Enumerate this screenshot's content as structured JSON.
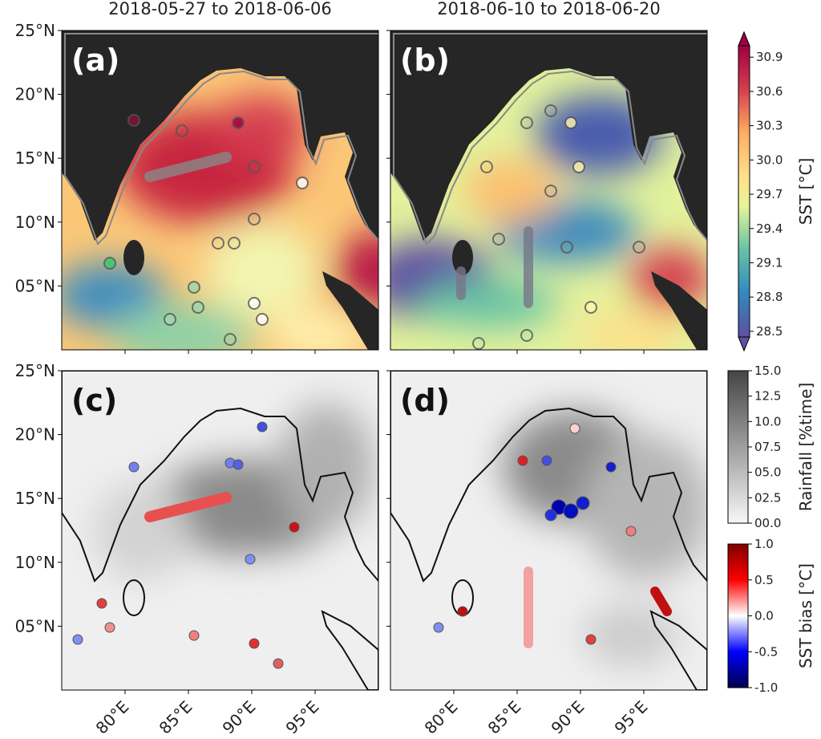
{
  "panels": [
    {
      "label": "(a)",
      "title": "2018-05-27 to 2018-06-06"
    },
    {
      "label": "(b)",
      "title": "2018-06-10 to 2018-06-20"
    },
    {
      "label": "(c)"
    },
    {
      "label": "(d)"
    }
  ],
  "map": {
    "lat_lim": [
      0,
      25
    ],
    "lon_lim": [
      75,
      100
    ],
    "lat_ticks": [
      {
        "value": 25,
        "label": "25°N"
      },
      {
        "value": 20,
        "label": "20°N"
      },
      {
        "value": 15,
        "label": "15°N"
      },
      {
        "value": 10,
        "label": "10°N"
      },
      {
        "value": 5,
        "label": "05°N"
      }
    ],
    "lon_ticks": [
      {
        "value": 80,
        "label": "80°E"
      },
      {
        "value": 85,
        "label": "85°E"
      },
      {
        "value": 90,
        "label": "90°E"
      },
      {
        "value": 95,
        "label": "95°E"
      }
    ]
  },
  "colorbars": [
    {
      "label": "SST [°C]",
      "lim": [
        28.45,
        31.0
      ],
      "ticks": [
        28.5,
        28.8,
        29.1,
        29.4,
        29.7,
        {
          "value": 30,
          "label": "30.0"
        },
        30.3,
        30.6,
        30.9
      ]
    },
    {
      "label": "Rainfall [%time]",
      "lim": [
        0,
        15
      ],
      "ticks": [
        {
          "value": 0,
          "label": "00.0"
        },
        {
          "value": 2.5,
          "label": "02.5"
        },
        {
          "value": 5,
          "label": "05.0"
        },
        {
          "value": 7.5,
          "label": "07.5"
        },
        {
          "value": 10,
          "label": "10.0"
        },
        12.5,
        {
          "value": 15,
          "label": "15.0"
        }
      ]
    },
    {
      "label": "SST bias [°C]",
      "lim": [
        -1,
        1
      ],
      "ticks": [
        {
          "value": -1,
          "label": "-1.0"
        },
        -0.5,
        {
          "value": 0,
          "label": "0.0"
        },
        0.5,
        {
          "value": 1,
          "label": "1.0"
        }
      ]
    }
  ]
}
